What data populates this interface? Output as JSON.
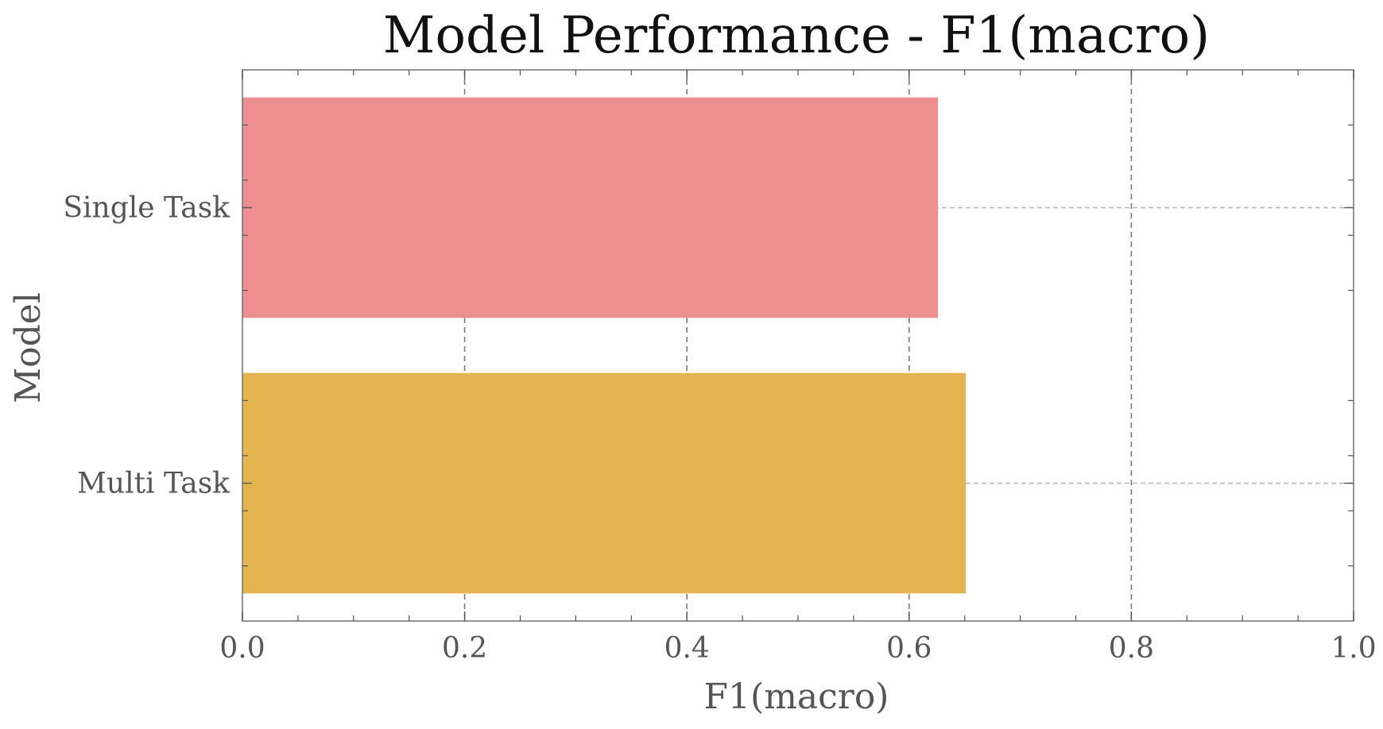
{
  "chart_data": {
    "type": "bar",
    "orientation": "horizontal",
    "title": "Model Performance - F1(macro)",
    "xlabel": "F1(macro)",
    "ylabel": "Model",
    "categories": [
      "Single Task",
      "Multi Task"
    ],
    "values": [
      0.626,
      0.651
    ],
    "colors": [
      "#ec8f8e",
      "#e4b451"
    ],
    "xlim": [
      0,
      1.0
    ],
    "xticks": [
      "0.0",
      "0.2",
      "0.4",
      "0.6",
      "0.8",
      "1.0"
    ],
    "grid": true,
    "legend": "none"
  }
}
